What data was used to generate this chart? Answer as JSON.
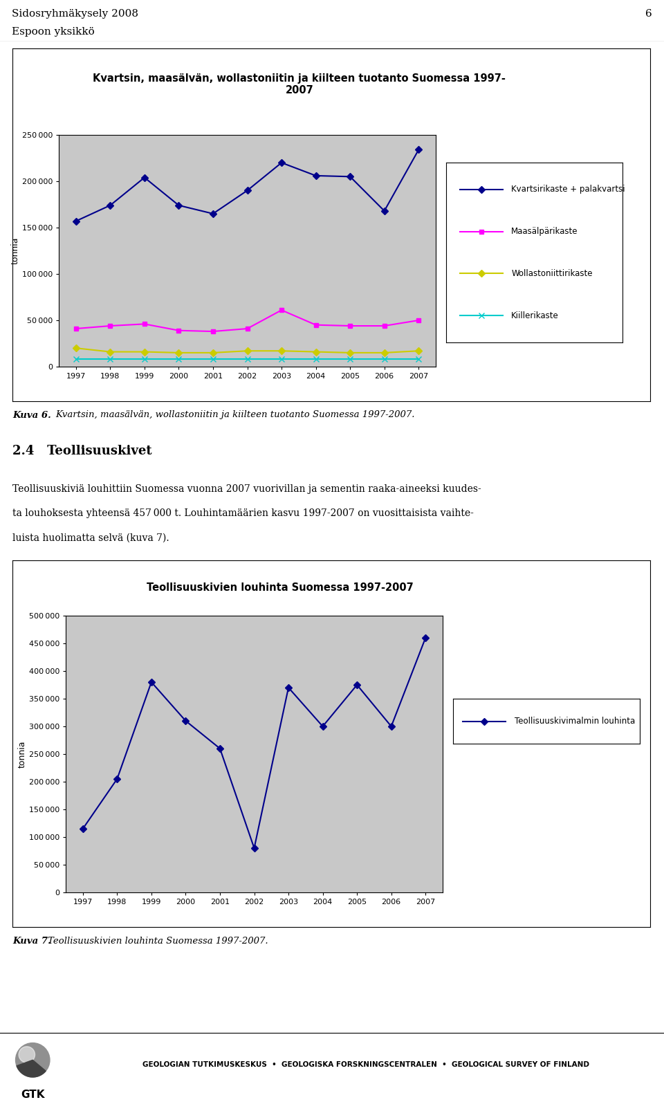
{
  "page_header_line1": "Sidosryhmäkysely 2008",
  "page_header_line2": "Espoon yksikkö",
  "page_number": "6",
  "chart1": {
    "title": "Kvartsin, maasälvän, wollastoniitin ja kiilteen tuotanto Suomessa 1997-\n2007",
    "years": [
      1997,
      1998,
      1999,
      2000,
      2001,
      2002,
      2003,
      2004,
      2005,
      2006,
      2007
    ],
    "series": [
      {
        "name": "Kvartsirikaste + palakvartsi",
        "values": [
          157000,
          174000,
          204000,
          174000,
          165000,
          190000,
          220000,
          206000,
          205000,
          168000,
          234000
        ],
        "color": "#00008B",
        "marker": "D",
        "linestyle": "-"
      },
      {
        "name": "Maasälpärikaste",
        "values": [
          41000,
          44000,
          46000,
          39000,
          38000,
          41000,
          61000,
          45000,
          44000,
          44000,
          50000
        ],
        "color": "#FF00FF",
        "marker": "s",
        "linestyle": "-"
      },
      {
        "name": "Wollastoniittirikaste",
        "values": [
          20000,
          16000,
          16000,
          15000,
          15000,
          17000,
          17000,
          16000,
          15000,
          15000,
          17000
        ],
        "color": "#CCCC00",
        "marker": "D",
        "linestyle": "-"
      },
      {
        "name": "Kiillerikaste",
        "values": [
          8000,
          8000,
          8000,
          8000,
          8000,
          8000,
          8000,
          8000,
          8000,
          8000,
          8000
        ],
        "color": "#00CCCC",
        "marker": "x",
        "linestyle": "-"
      }
    ],
    "ylabel": "tonnia",
    "ylim": [
      0,
      250000
    ],
    "yticks": [
      0,
      50000,
      100000,
      150000,
      200000,
      250000
    ],
    "bg_color": "#C8C8C8"
  },
  "caption1_bold": "Kuva 6.",
  "caption1_text": "  Kvartsin, maasälvän, wollastoniitin ja kiilteen tuotanto Suomessa 1997-2007.",
  "section_title": "2.4   Teollisuuskivet",
  "body_line1": "Teollisuuskiviä louhittiin Suomessa vuonna 2007 vuorivillan ja sementin raaka-aineeksi kuudes-",
  "body_line2": "ta louhoksesta yhteensä 457 000 t. Louhintamäärien kasvu 1997-2007 on vuosittaisista vaihte-",
  "body_line3": "luista huolimatta selvä (kuva 7).",
  "chart2": {
    "title": "Teollisuuskivien louhinta Suomessa 1997-2007",
    "years": [
      1997,
      1998,
      1999,
      2000,
      2001,
      2002,
      2003,
      2004,
      2005,
      2006,
      2007
    ],
    "series": [
      {
        "name": "Teollisuuskivimalmin louhinta",
        "values": [
          115000,
          205000,
          380000,
          310000,
          260000,
          80000,
          370000,
          300000,
          375000,
          300000,
          460000
        ],
        "color": "#00008B",
        "marker": "D",
        "linestyle": "-"
      }
    ],
    "ylabel": "tonnia",
    "ylim": [
      0,
      500000
    ],
    "yticks": [
      0,
      50000,
      100000,
      150000,
      200000,
      250000,
      300000,
      350000,
      400000,
      450000,
      500000
    ],
    "bg_color": "#C8C8C8"
  },
  "caption2_bold": "Kuva 7.",
  "caption2_text": "  Teollisuuskivien louhinta Suomessa 1997-2007.",
  "footer_text": "GEOLOGIAN TUTKIMUSKESKUS  •  GEOLOGISKA FORSKNINGSCENTRALEN  •  GEOLOGICAL SURVEY OF FINLAND"
}
